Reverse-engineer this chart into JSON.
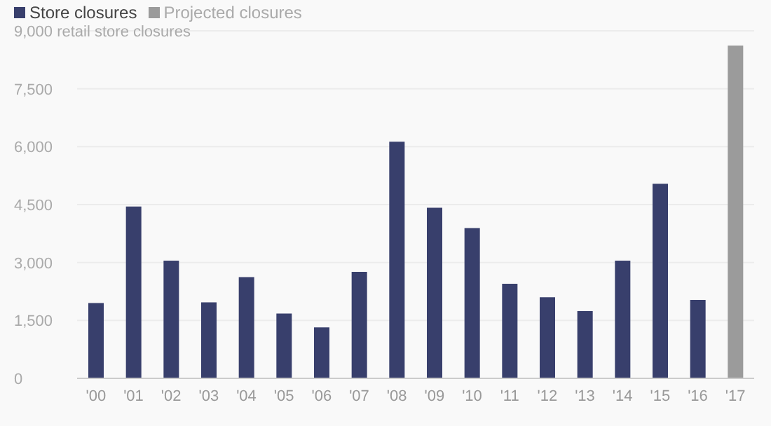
{
  "chart_data": {
    "type": "bar",
    "stacked": true,
    "categories": [
      "'00",
      "'01",
      "'02",
      "'03",
      "'04",
      "'05",
      "'06",
      "'07",
      "'08",
      "'09",
      "'10",
      "'11",
      "'12",
      "'13",
      "'14",
      "'15",
      "'16",
      "'17"
    ],
    "series": [
      {
        "name": "Store closures",
        "color": "#383f6c",
        "values": [
          1950,
          4450,
          3050,
          1970,
          2620,
          1680,
          1320,
          2760,
          6130,
          4420,
          3890,
          2450,
          2100,
          1740,
          3050,
          5040,
          2030,
          null
        ]
      },
      {
        "name": "Projected closures",
        "color": "#9b9b9b",
        "values": [
          null,
          null,
          null,
          null,
          null,
          null,
          null,
          null,
          null,
          null,
          null,
          null,
          null,
          null,
          null,
          null,
          null,
          8620
        ]
      }
    ],
    "ylim": [
      0,
      9000
    ],
    "yticks": [
      0,
      {
        "value": 1500,
        "label": "1,500"
      },
      {
        "value": 3000,
        "label": "3,000"
      },
      {
        "value": 4500,
        "label": "4,500"
      },
      {
        "value": 6000,
        "label": "6,000"
      },
      {
        "value": 7500,
        "label": "7,500"
      },
      {
        "value": 9000,
        "label": "9,000 retail store closures"
      }
    ],
    "grid": "y",
    "legend": "top left"
  }
}
